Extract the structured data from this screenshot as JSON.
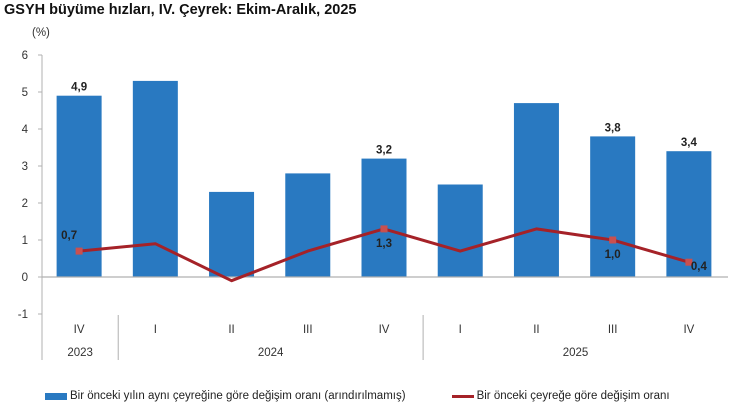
{
  "title": "GSYH büyüme hızları, IV. Çeyrek: Ekim-Aralık, 2025",
  "unit_label": "(%)",
  "legend": {
    "bar_label": "Bir önceki yılın aynı çeyreğine göre değişim oranı (arındırılmamış)",
    "line_label": "Bir önceki çeyreğe göre değişim oranı"
  },
  "colors": {
    "bar": "#2979c1",
    "line": "#a52228",
    "axis": "#b0b0b0"
  },
  "chart_data": {
    "type": "bar+line",
    "title": "GSYH büyüme hızları, IV. Çeyrek: Ekim-Aralık, 2025",
    "ylabel": "(%)",
    "xlabel": "",
    "ylim": [
      -1,
      6
    ],
    "yticks": [
      -1,
      0,
      1,
      2,
      3,
      4,
      5,
      6
    ],
    "grid": false,
    "legend_position": "bottom",
    "categories": [
      "IV",
      "I",
      "II",
      "III",
      "IV",
      "I",
      "II",
      "III",
      "IV"
    ],
    "year_groups": [
      {
        "label": "2023",
        "span": 1
      },
      {
        "label": "2024",
        "span": 4
      },
      {
        "label": "2025",
        "span": 4
      }
    ],
    "series": [
      {
        "name": "Bir önceki yılın aynı çeyreğine göre değişim oranı (arındırılmamış)",
        "type": "bar",
        "values": [
          4.9,
          5.3,
          2.3,
          2.8,
          3.2,
          2.5,
          4.7,
          3.8,
          3.4
        ],
        "data_labels": [
          "4,9",
          "",
          "",
          "",
          "3,2",
          "",
          "",
          "3,8",
          "3,4"
        ]
      },
      {
        "name": "Bir önceki çeyreğe göre değişim oranı",
        "type": "line",
        "values": [
          0.7,
          0.9,
          -0.1,
          0.7,
          1.3,
          0.7,
          1.3,
          1.0,
          0.4
        ],
        "data_labels": [
          "0,7",
          "",
          "",
          "",
          "1,3",
          "",
          "",
          "1,0",
          "0,4"
        ]
      }
    ]
  }
}
